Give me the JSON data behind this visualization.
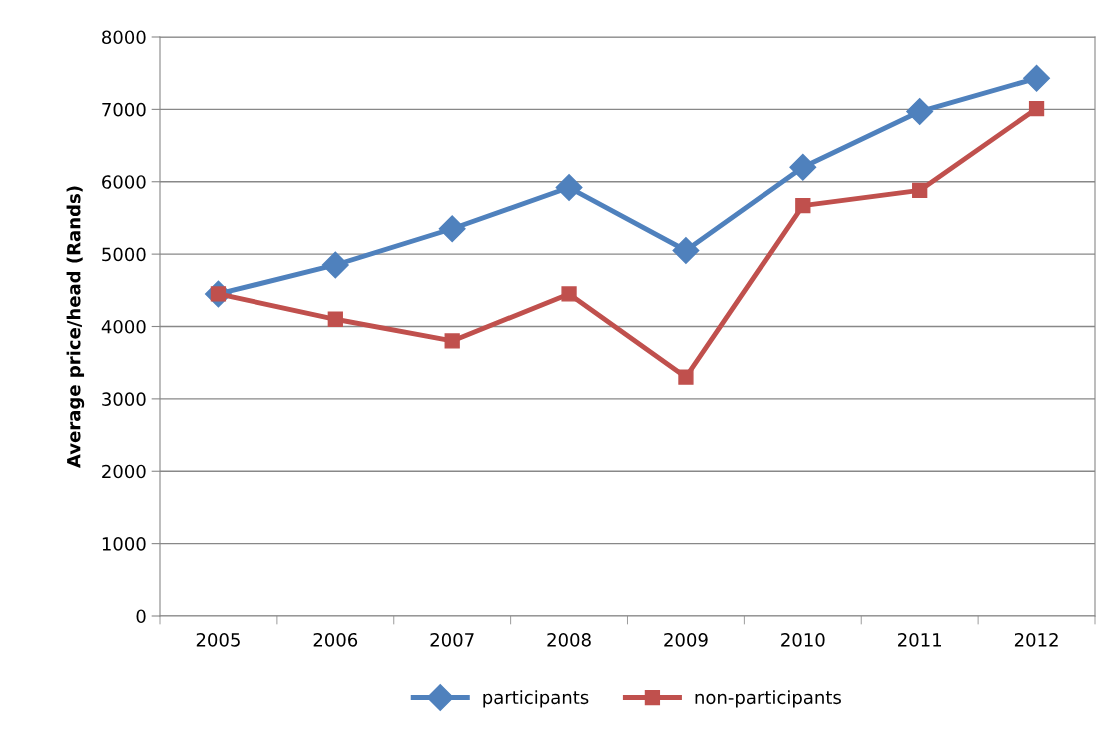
{
  "chart_data": {
    "type": "line",
    "ylabel": "Average price/head (Rands)",
    "categories": [
      "2005",
      "2006",
      "2007",
      "2008",
      "2009",
      "2010",
      "2011",
      "2012"
    ],
    "series": [
      {
        "name": "participants",
        "color": "#4f81bd",
        "marker": "diamond",
        "values": [
          4450,
          4850,
          5350,
          5920,
          5050,
          6200,
          6970,
          7430
        ]
      },
      {
        "name": "non-participants",
        "color": "#c0504d",
        "marker": "square",
        "values": [
          4450,
          4100,
          3800,
          4450,
          3300,
          5670,
          5880,
          7010
        ]
      }
    ],
    "ylim": [
      0,
      8000
    ],
    "yticks": [
      0,
      1000,
      2000,
      3000,
      4000,
      5000,
      6000,
      7000,
      8000
    ],
    "grid": "y",
    "legend": "bottom",
    "line_style": "solid"
  }
}
